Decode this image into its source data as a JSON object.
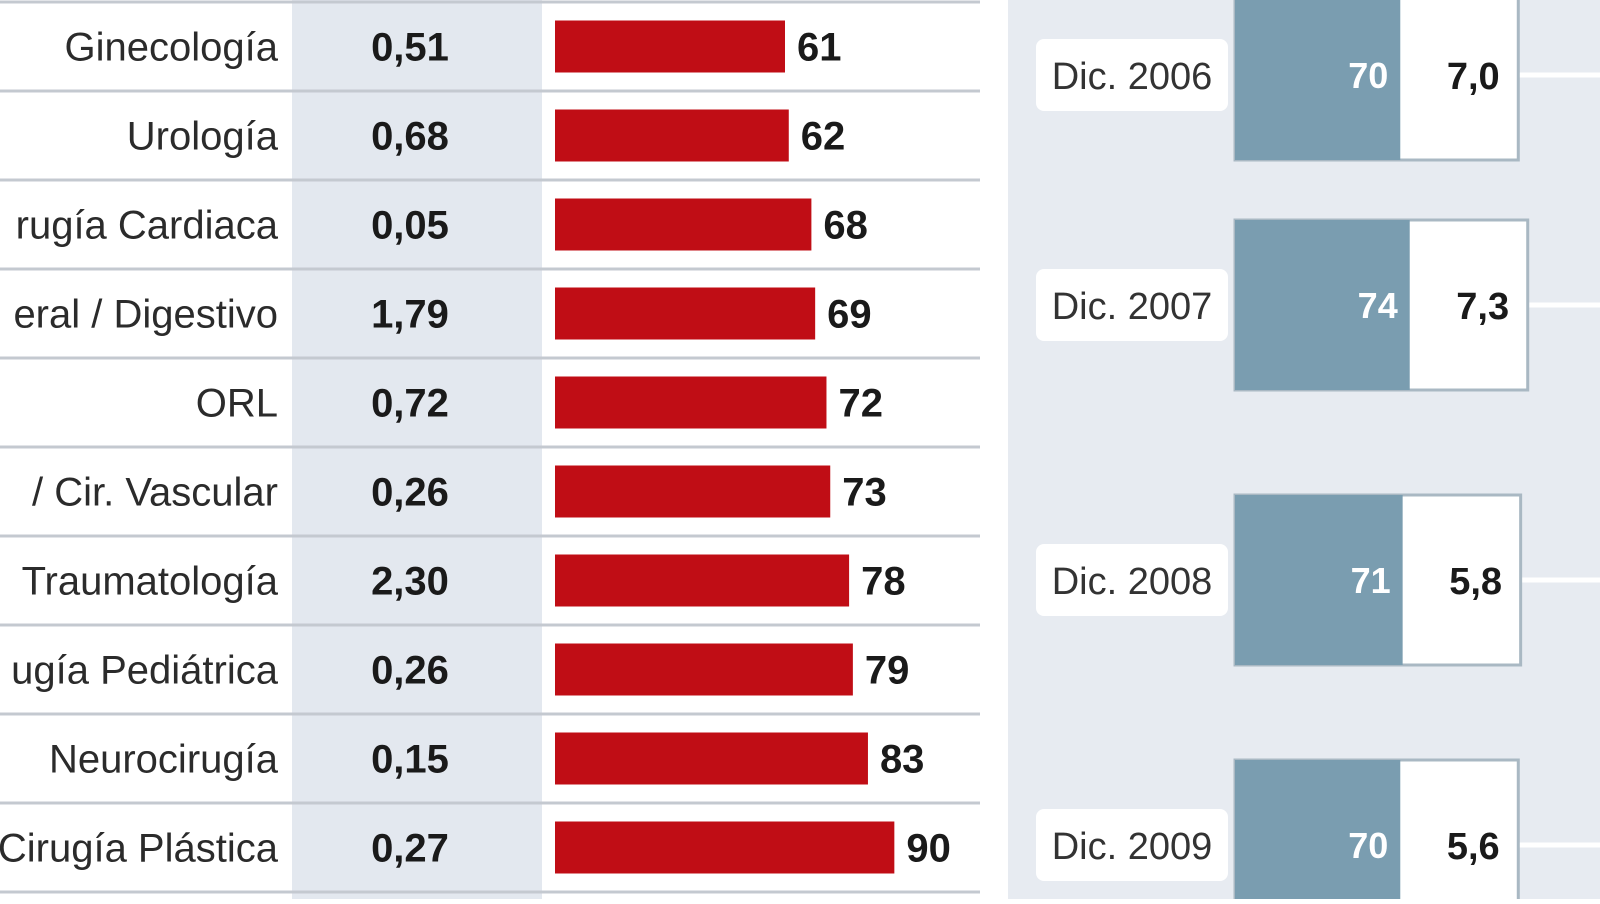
{
  "colors": {
    "bar": "#c00d15",
    "rate_column_bg": "#e3e8ef",
    "row_divider": "#c4c9d0",
    "right_panel_bg": "#e7ebf1",
    "teal": "#7a9db0",
    "white_box": "#ffffff",
    "box_border": "#a9b8c3"
  },
  "chart_data": [
    {
      "type": "bar",
      "orientation": "horizontal",
      "categories": [
        "Ginecología",
        "Urología",
        "rugía Cardiaca",
        "eral / Digestivo",
        "ORL",
        "/ Cir. Vascular",
        "Traumatología",
        "ugía Pediátrica",
        "Neurocirugía",
        "Cirugía Plástica"
      ],
      "rates": [
        "0,51",
        "0,68",
        "0,05",
        "1,79",
        "0,72",
        "0,26",
        "2,30",
        "0,26",
        "0,15",
        "0,27"
      ],
      "values": [
        61,
        62,
        68,
        69,
        72,
        73,
        78,
        79,
        83,
        90
      ],
      "value_labels": [
        "61",
        "62",
        "68",
        "69",
        "72",
        "73",
        "78",
        "79",
        "83",
        "90"
      ]
    },
    {
      "type": "table",
      "rows": [
        {
          "label": "Dic. 2006",
          "teal_value": 70,
          "teal_label": "70",
          "white_label": "7,0"
        },
        {
          "label": "Dic. 2007",
          "teal_value": 74,
          "teal_label": "74",
          "white_label": "7,3"
        },
        {
          "label": "Dic. 2008",
          "teal_value": 71,
          "teal_label": "71",
          "white_label": "5,8"
        },
        {
          "label": "Dic. 2009",
          "teal_value": 70,
          "teal_label": "70",
          "white_label": "5,6"
        }
      ]
    }
  ]
}
